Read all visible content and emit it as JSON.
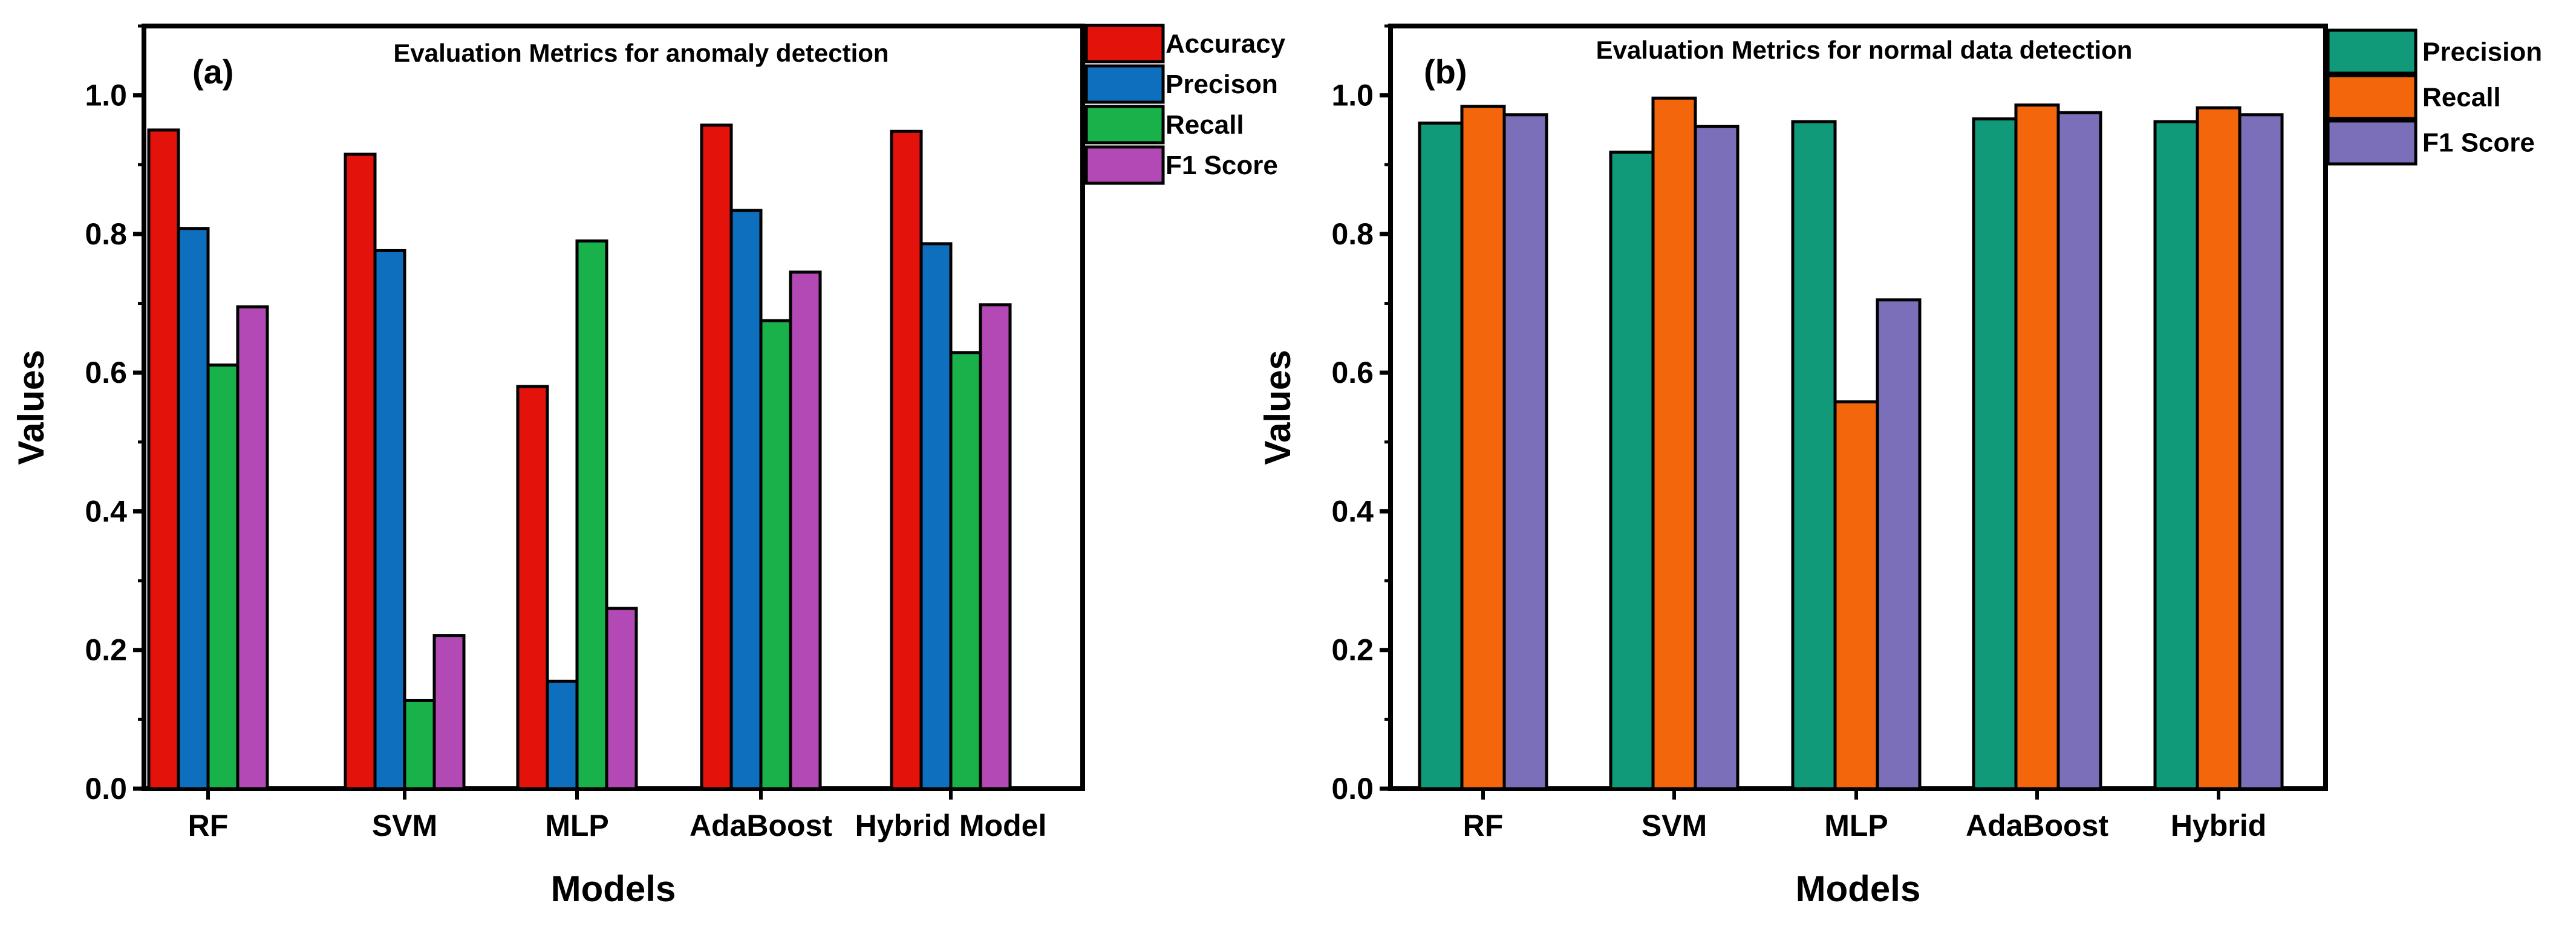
{
  "chart_data": [
    {
      "type": "bar",
      "panel_label": "(a)",
      "title": "Evaluation Metrics for anomaly detection",
      "xlabel": "Models",
      "ylabel": "Values",
      "ylim": [
        0,
        1.1
      ],
      "yticks": [
        "0.0",
        "0.2",
        "0.4",
        "0.6",
        "0.8",
        "1.0"
      ],
      "categories": [
        "RF",
        "SVM",
        "MLP",
        "AdaBoost",
        "Hybrid Model"
      ],
      "legend_position": "outside-top-right",
      "series": [
        {
          "name": "Accuracy",
          "color": "#e3120b",
          "values": [
            0.95,
            0.915,
            0.58,
            0.957,
            0.948
          ]
        },
        {
          "name": "Precison",
          "color": "#0f6fbf",
          "values": [
            0.808,
            0.776,
            0.155,
            0.834,
            0.786
          ]
        },
        {
          "name": "Recall",
          "color": "#19b24a",
          "values": [
            0.611,
            0.127,
            0.79,
            0.675,
            0.629
          ]
        },
        {
          "name": "F1 Score",
          "color": "#b249b5",
          "values": [
            0.695,
            0.221,
            0.26,
            0.745,
            0.698
          ]
        }
      ]
    },
    {
      "type": "bar",
      "panel_label": "(b)",
      "title": "Evaluation Metrics for normal data detection",
      "xlabel": "Models",
      "ylabel": "Values",
      "ylim": [
        0,
        1.1
      ],
      "yticks": [
        "0.0",
        "0.2",
        "0.4",
        "0.6",
        "0.8",
        "1.0"
      ],
      "categories": [
        "RF",
        "SVM",
        "MLP",
        "AdaBoost",
        "Hybrid"
      ],
      "legend_position": "outside-top-right",
      "series": [
        {
          "name": "Precision",
          "color": "#119a7a",
          "values": [
            0.96,
            0.918,
            0.962,
            0.966,
            0.962
          ]
        },
        {
          "name": "Recall",
          "color": "#f4660c",
          "values": [
            0.984,
            0.996,
            0.558,
            0.986,
            0.982
          ]
        },
        {
          "name": "F1 Score",
          "color": "#7a6fb8",
          "values": [
            0.972,
            0.955,
            0.705,
            0.975,
            0.972
          ]
        }
      ]
    }
  ]
}
